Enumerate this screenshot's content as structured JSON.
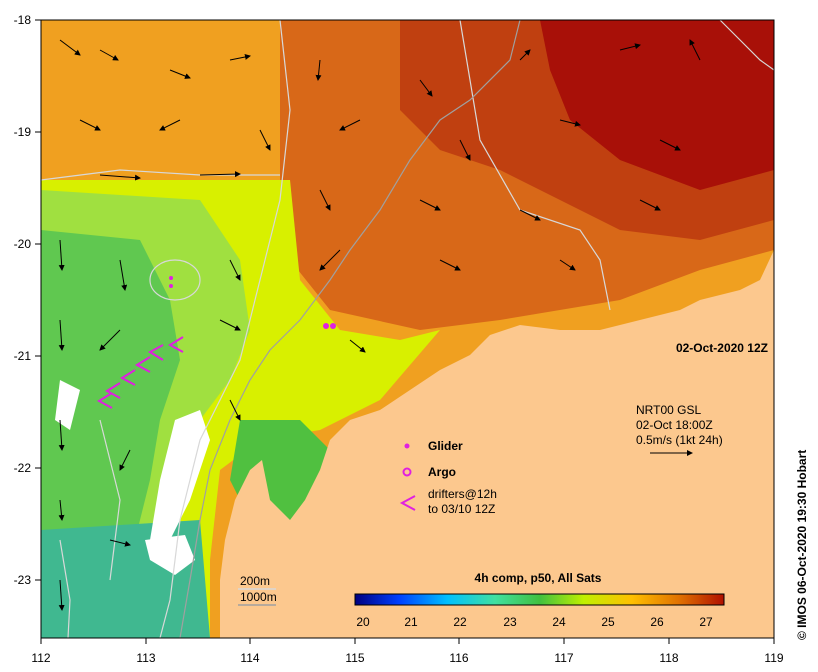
{
  "map": {
    "lon_ticks": [
      "112",
      "113",
      "114",
      "115",
      "116",
      "117",
      "118",
      "119"
    ],
    "lat_ticks": [
      "-18",
      "-19",
      "-20",
      "-21",
      "-22",
      "-23"
    ],
    "date_label": "02-Oct-2020 12Z",
    "credit": "© IMOS 06-Oct-2020 19:30 Hobart"
  },
  "current_info": {
    "line1": "NRT00 GSL",
    "line2": "02-Oct 18:00Z",
    "line3": "0.5m/s (1kt 24h)"
  },
  "legend": {
    "glider": "Glider",
    "argo": "Argo",
    "drifters_line1": "drifters@12h",
    "drifters_line2": "to 03/10 12Z",
    "colors": {
      "glider": "#e020e0",
      "argo": "#e020e0",
      "drifters": "#e020e0"
    }
  },
  "depth_labels": {
    "a": "200m",
    "b": "1000m"
  },
  "colorbar": {
    "title": "4h comp, p50, All Sats",
    "ticks": [
      "20",
      "21",
      "22",
      "23",
      "24",
      "25",
      "26",
      "27"
    ],
    "stops": [
      "#000080",
      "#0040ff",
      "#00c0ff",
      "#40e0a0",
      "#40c040",
      "#c0f000",
      "#ffc000",
      "#e07000",
      "#b01000"
    ]
  }
}
